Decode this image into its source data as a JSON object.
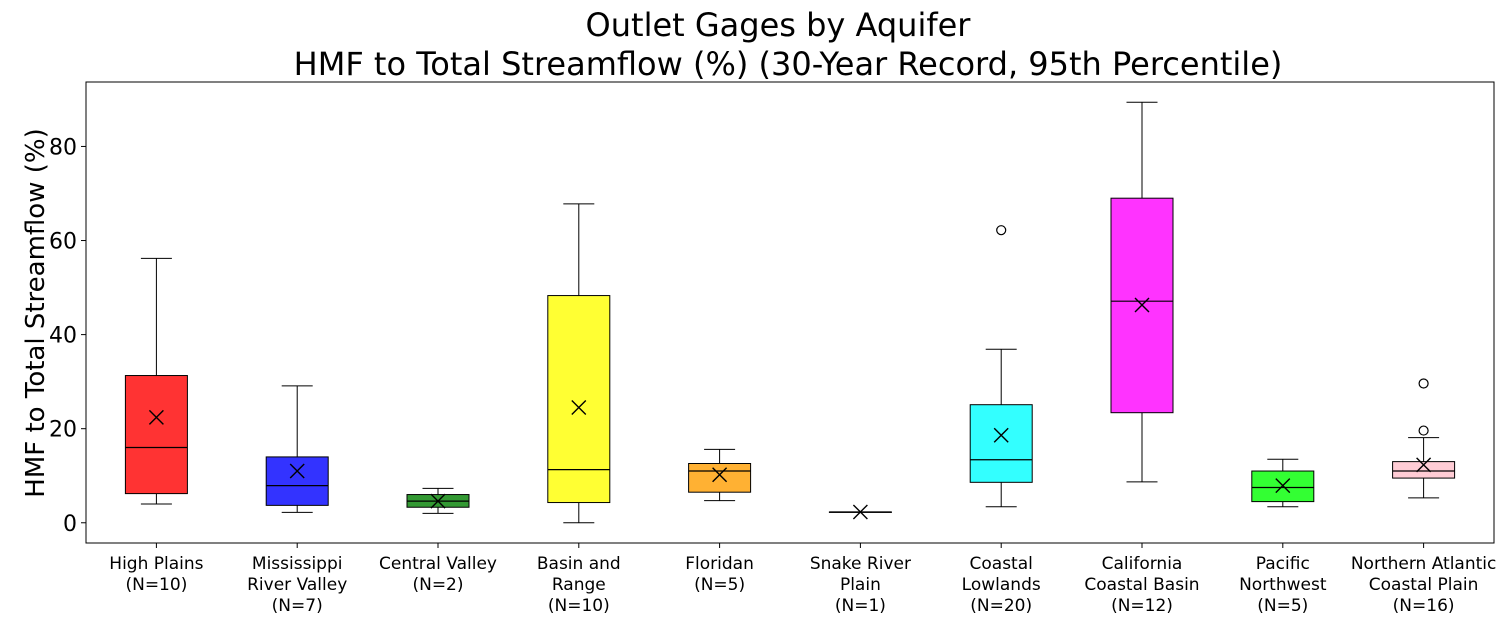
{
  "chart_data": {
    "type": "box",
    "title_line1": "Outlet Gages by Aquifer",
    "title_line2": "HMF to Total Streamflow (%) (30-Year Record, 95th Percentile)",
    "xlabel": "",
    "ylabel": "HMF to Total Streamflow (%)",
    "ylim": [
      -4.3,
      93.7
    ],
    "yticks": [
      "0",
      "20",
      "40",
      "60",
      "80"
    ],
    "legend": "none",
    "grid": false,
    "mean_marker": "x",
    "categories": [
      {
        "label_lines": [
          "High Plains",
          "(N=10)"
        ],
        "color": "#ff3333",
        "whislo": 4.0,
        "q1": 6.2,
        "median": 16.0,
        "q3": 31.3,
        "whishi": 56.2,
        "mean": 22.4,
        "fliers": []
      },
      {
        "label_lines": [
          "Mississippi",
          "River Valley",
          "(N=7)"
        ],
        "color": "#3333ff",
        "whislo": 2.2,
        "q1": 3.7,
        "median": 7.9,
        "q3": 14.0,
        "whishi": 29.1,
        "mean": 11.0,
        "fliers": []
      },
      {
        "label_lines": [
          "Central Valley",
          "(N=2)"
        ],
        "color": "#339933",
        "whislo": 2.0,
        "q1": 3.3,
        "median": 4.6,
        "q3": 6.0,
        "whishi": 7.3,
        "mean": 4.6,
        "fliers": []
      },
      {
        "label_lines": [
          "Basin and",
          "Range",
          "(N=10)"
        ],
        "color": "#ffff33",
        "whislo": 0.0,
        "q1": 4.3,
        "median": 11.3,
        "q3": 48.3,
        "whishi": 67.8,
        "mean": 24.5,
        "fliers": []
      },
      {
        "label_lines": [
          "Floridan",
          "(N=5)"
        ],
        "color": "#ffb133",
        "whislo": 4.7,
        "q1": 6.5,
        "median": 11.0,
        "q3": 12.6,
        "whishi": 15.6,
        "mean": 10.2,
        "fliers": []
      },
      {
        "label_lines": [
          "Snake River",
          "Plain",
          "(N=1)"
        ],
        "color": "#ffffff",
        "whislo": 2.3,
        "q1": 2.3,
        "median": 2.3,
        "q3": 2.3,
        "whishi": 2.3,
        "mean": 2.3,
        "fliers": []
      },
      {
        "label_lines": [
          "Coastal",
          "Lowlands",
          "(N=20)"
        ],
        "color": "#33ffff",
        "whislo": 3.4,
        "q1": 8.6,
        "median": 13.4,
        "q3": 25.1,
        "whishi": 36.9,
        "mean": 18.6,
        "fliers": [
          62.2
        ]
      },
      {
        "label_lines": [
          "California",
          "Coastal Basin",
          "(N=12)"
        ],
        "color": "#ff33ff",
        "whislo": 8.7,
        "q1": 23.4,
        "median": 47.1,
        "q3": 69.0,
        "whishi": 89.4,
        "mean": 46.3,
        "fliers": []
      },
      {
        "label_lines": [
          "Pacific",
          "Northwest",
          "(N=5)"
        ],
        "color": "#33ff33",
        "whislo": 3.4,
        "q1": 4.5,
        "median": 7.5,
        "q3": 11.0,
        "whishi": 13.5,
        "mean": 7.9,
        "fliers": []
      },
      {
        "label_lines": [
          "Northern Atlantic",
          "Coastal Plain",
          "(N=16)"
        ],
        "color": "#ffccd5",
        "whislo": 5.3,
        "q1": 9.5,
        "median": 11.0,
        "q3": 13.0,
        "whishi": 18.1,
        "mean": 12.3,
        "fliers": [
          19.6,
          29.6
        ]
      }
    ]
  }
}
